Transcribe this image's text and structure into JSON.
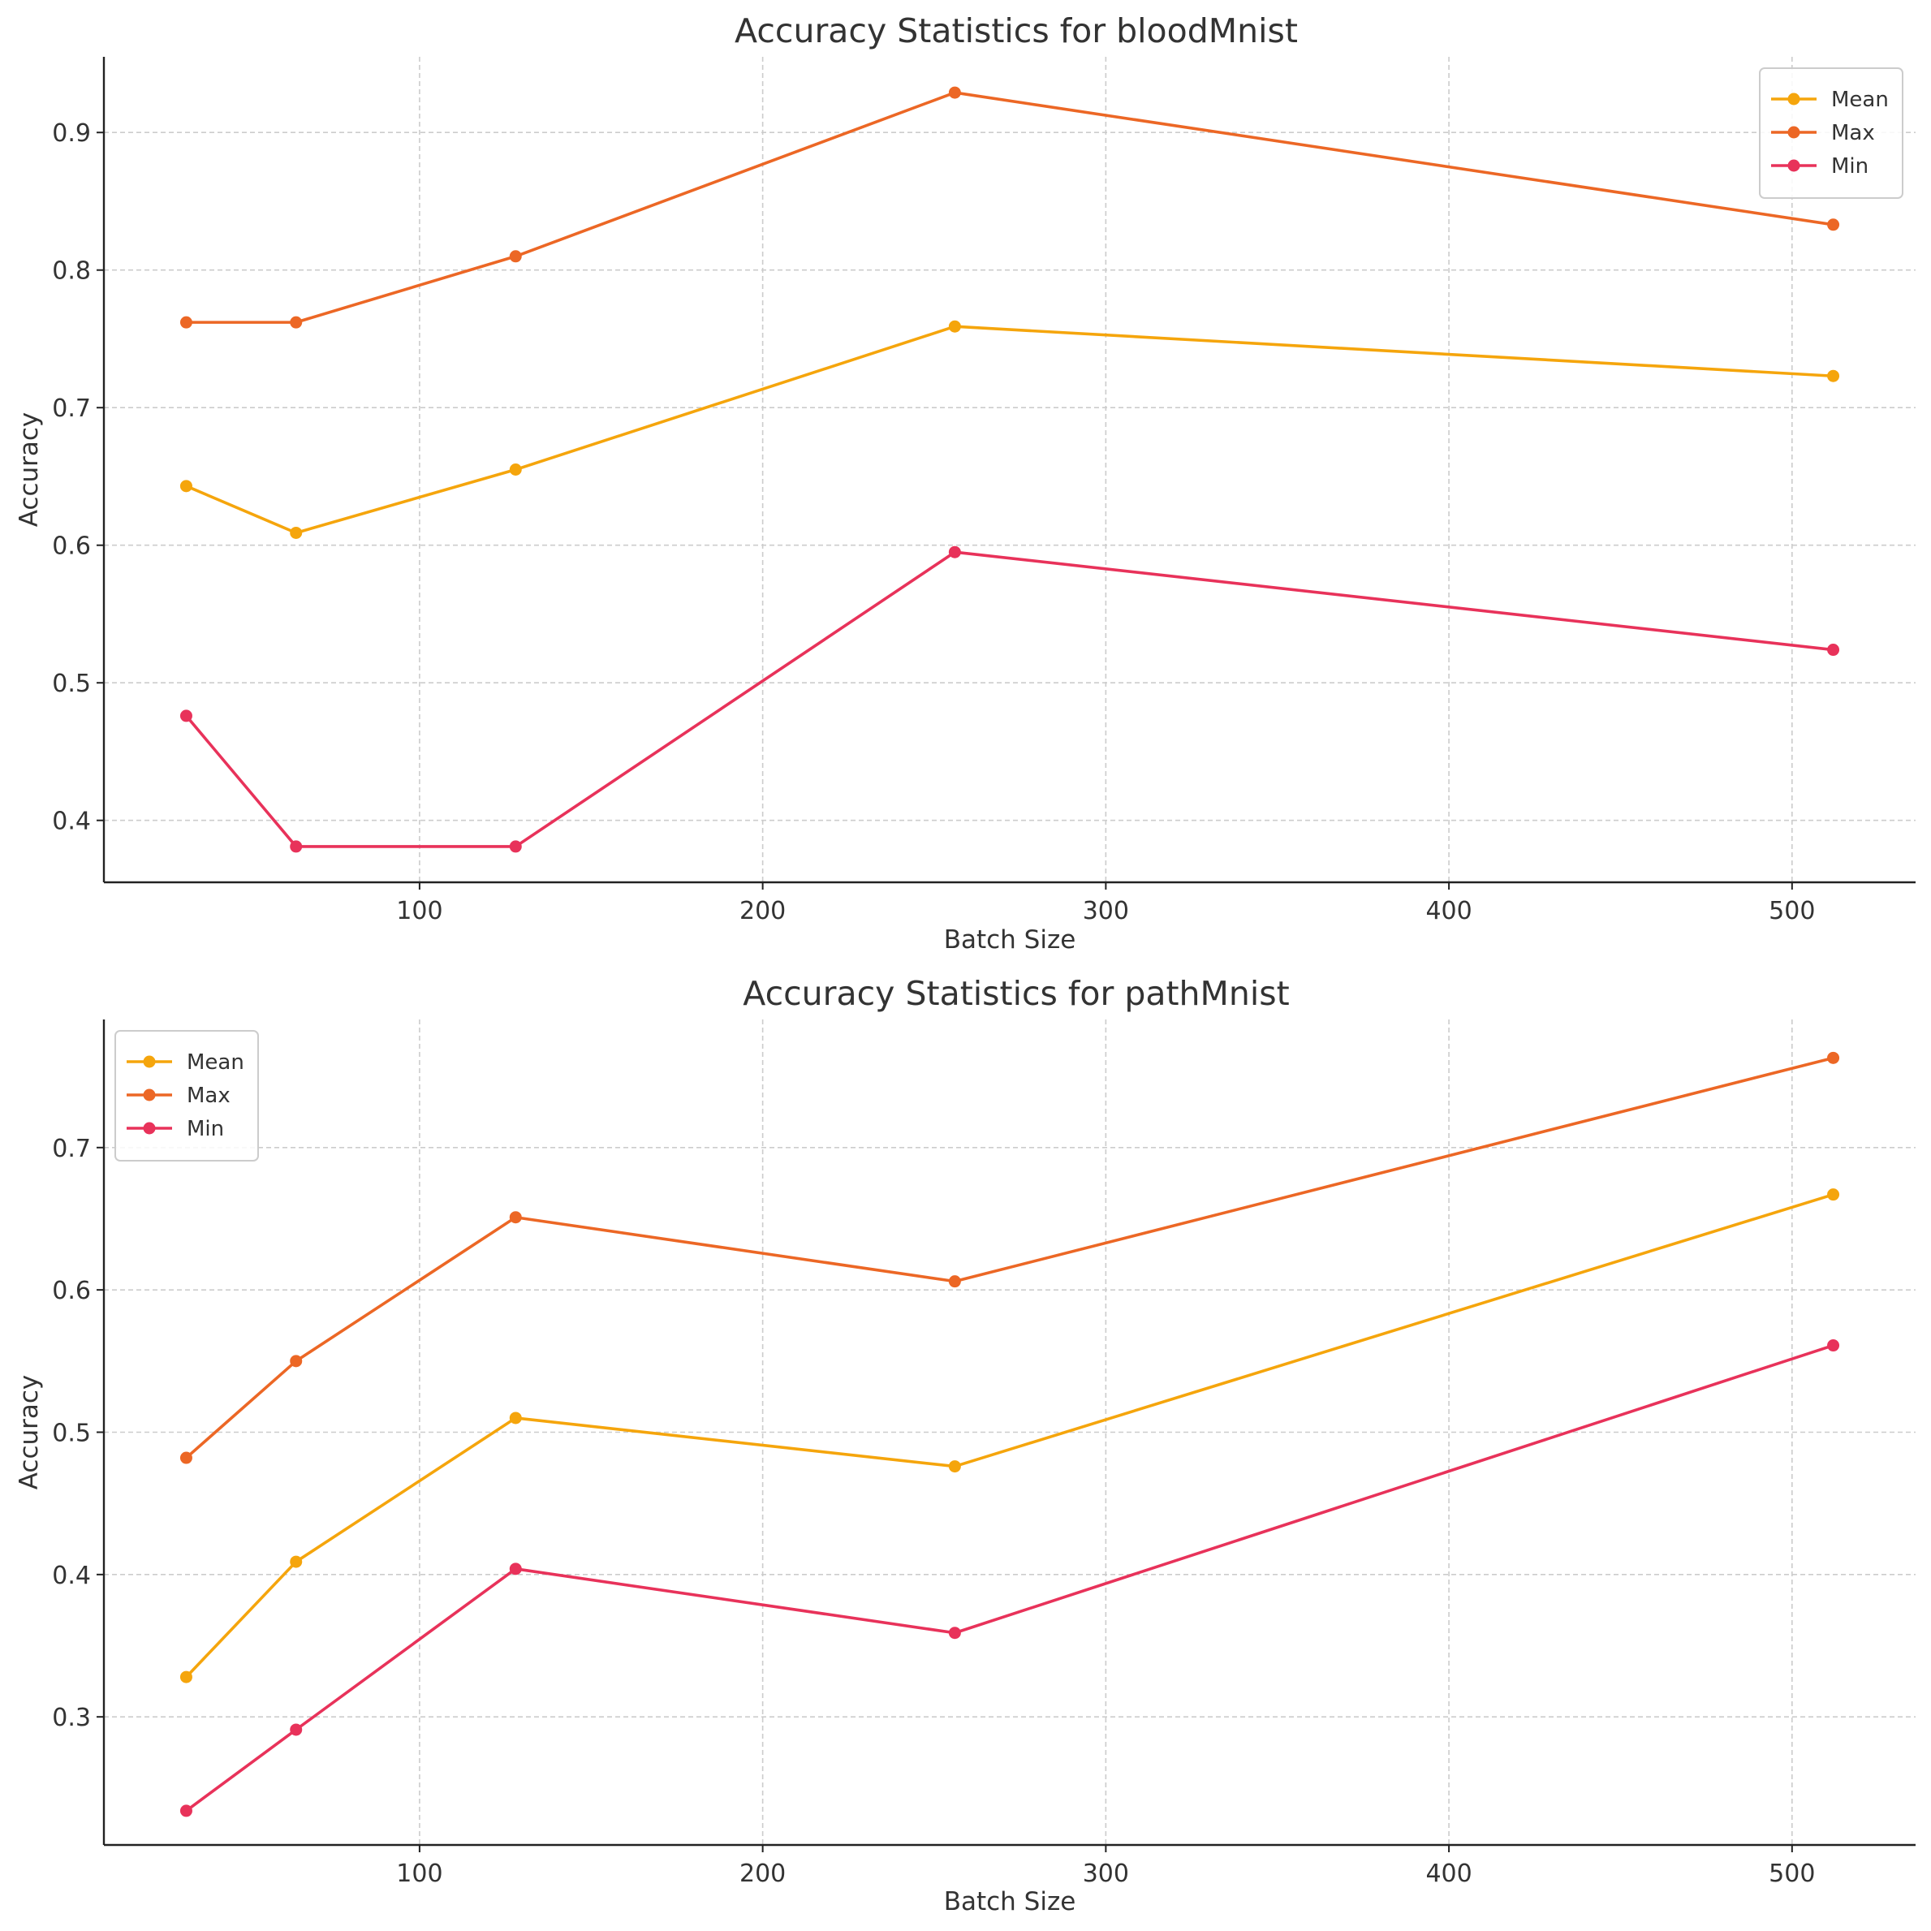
{
  "chart_data": [
    {
      "type": "line",
      "title": "Accuracy Statistics for bloodMnist",
      "xlabel": "Batch Size",
      "ylabel": "Accuracy",
      "x": [
        32,
        64,
        128,
        256,
        512
      ],
      "xlim": [
        8,
        536
      ],
      "ylim": [
        0.355,
        0.955
      ],
      "xticks": [
        100,
        200,
        300,
        400,
        500
      ],
      "yticks": [
        0.4,
        0.5,
        0.6,
        0.7,
        0.8,
        0.9
      ],
      "xtick_labels": [
        "100",
        "200",
        "300",
        "400",
        "500"
      ],
      "ytick_labels": [
        "0.4",
        "0.5",
        "0.6",
        "0.7",
        "0.8",
        "0.9"
      ],
      "grid": true,
      "legend_position": "top-right",
      "series": [
        {
          "name": "Mean",
          "color": "#f5a50c",
          "values": [
            0.643,
            0.609,
            0.655,
            0.759,
            0.723
          ]
        },
        {
          "name": "Max",
          "color": "#ec6725",
          "values": [
            0.762,
            0.762,
            0.81,
            0.929,
            0.833
          ]
        },
        {
          "name": "Min",
          "color": "#e8325a",
          "values": [
            0.476,
            0.381,
            0.381,
            0.595,
            0.524
          ]
        }
      ]
    },
    {
      "type": "line",
      "title": "Accuracy Statistics for pathMnist",
      "xlabel": "Batch Size",
      "ylabel": "Accuracy",
      "x": [
        32,
        64,
        128,
        256,
        512
      ],
      "xlim": [
        8,
        536
      ],
      "ylim": [
        0.21,
        0.79
      ],
      "xticks": [
        100,
        200,
        300,
        400,
        500
      ],
      "yticks": [
        0.3,
        0.4,
        0.5,
        0.6,
        0.7
      ],
      "xtick_labels": [
        "100",
        "200",
        "300",
        "400",
        "500"
      ],
      "ytick_labels": [
        "0.3",
        "0.4",
        "0.5",
        "0.6",
        "0.7"
      ],
      "grid": true,
      "legend_position": "top-left",
      "series": [
        {
          "name": "Mean",
          "color": "#f5a50c",
          "values": [
            0.328,
            0.409,
            0.51,
            0.476,
            0.667
          ]
        },
        {
          "name": "Max",
          "color": "#ec6725",
          "values": [
            0.482,
            0.55,
            0.651,
            0.606,
            0.763
          ]
        },
        {
          "name": "Min",
          "color": "#e8325a",
          "values": [
            0.234,
            0.291,
            0.404,
            0.359,
            0.561
          ]
        }
      ]
    }
  ]
}
